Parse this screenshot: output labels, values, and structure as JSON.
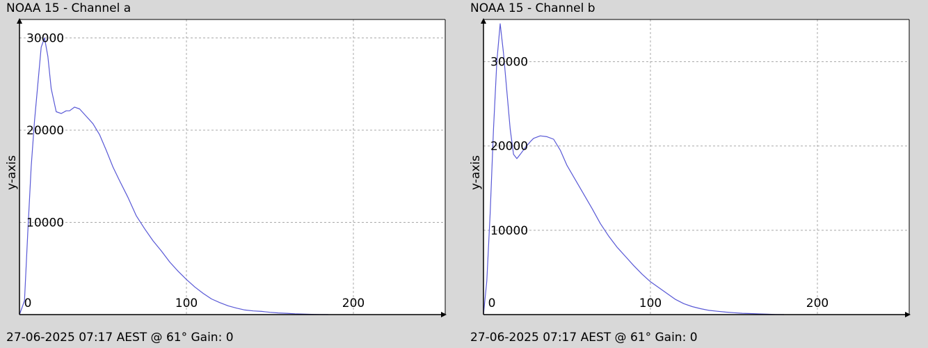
{
  "chart_data": [
    {
      "type": "line",
      "title": "NOAA 15 - Channel a",
      "ylabel": "y-axis",
      "footer": "27-06-2025 07:17 AEST @ 61° Gain: 0",
      "xlim": [
        0,
        255
      ],
      "ylim": [
        0,
        32000
      ],
      "xticks": [
        0,
        100,
        200
      ],
      "xtick_labels": [
        "0",
        "100",
        "200"
      ],
      "yticks": [
        10000,
        20000,
        30000
      ],
      "ytick_labels": [
        "10000",
        "20000",
        "30000"
      ],
      "grid": true,
      "series": [
        {
          "color": "#5858d6",
          "x": [
            0,
            3,
            5,
            7,
            9,
            11,
            13,
            15,
            17,
            19,
            22,
            25,
            28,
            30,
            33,
            36,
            40,
            44,
            48,
            52,
            56,
            60,
            65,
            70,
            75,
            80,
            85,
            90,
            95,
            100,
            105,
            110,
            115,
            120,
            125,
            130,
            135,
            140,
            145,
            150,
            155,
            160,
            165,
            170,
            175,
            180,
            185
          ],
          "y": [
            0,
            1500,
            9000,
            16000,
            21000,
            25000,
            29000,
            30000,
            28000,
            24500,
            22000,
            21800,
            22100,
            22100,
            22500,
            22300,
            21500,
            20700,
            19500,
            17800,
            16000,
            14500,
            12700,
            10700,
            9300,
            8000,
            6900,
            5700,
            4700,
            3800,
            3000,
            2300,
            1700,
            1300,
            950,
            700,
            500,
            400,
            350,
            250,
            180,
            140,
            90,
            60,
            30,
            10,
            0
          ]
        }
      ]
    },
    {
      "type": "line",
      "title": "NOAA 15 - Channel b",
      "ylabel": "y-axis",
      "footer": "27-06-2025 07:17 AEST @ 61° Gain: 0",
      "xlim": [
        0,
        255
      ],
      "ylim": [
        0,
        35000
      ],
      "xticks": [
        0,
        100,
        200
      ],
      "xtick_labels": [
        "0",
        "100",
        "200"
      ],
      "yticks": [
        10000,
        20000,
        30000
      ],
      "ytick_labels": [
        "10000",
        "20000",
        "30000"
      ],
      "grid": true,
      "series": [
        {
          "color": "#5858d6",
          "x": [
            0,
            2,
            4,
            6,
            8,
            10,
            12,
            14,
            16,
            18,
            20,
            22,
            25,
            28,
            30,
            34,
            38,
            42,
            46,
            50,
            55,
            60,
            65,
            70,
            75,
            80,
            85,
            90,
            95,
            100,
            105,
            110,
            115,
            120,
            125,
            130,
            135,
            140,
            145,
            150,
            155,
            160,
            165,
            170,
            175,
            180
          ],
          "y": [
            0,
            4000,
            12000,
            22000,
            30000,
            34500,
            31000,
            26500,
            22000,
            19000,
            18500,
            19000,
            19800,
            20500,
            20900,
            21200,
            21100,
            20800,
            19500,
            17700,
            16000,
            14300,
            12600,
            10800,
            9300,
            8000,
            6900,
            5800,
            4800,
            3900,
            3200,
            2500,
            1800,
            1300,
            950,
            700,
            500,
            400,
            300,
            220,
            160,
            120,
            80,
            50,
            20,
            0
          ]
        }
      ]
    }
  ]
}
